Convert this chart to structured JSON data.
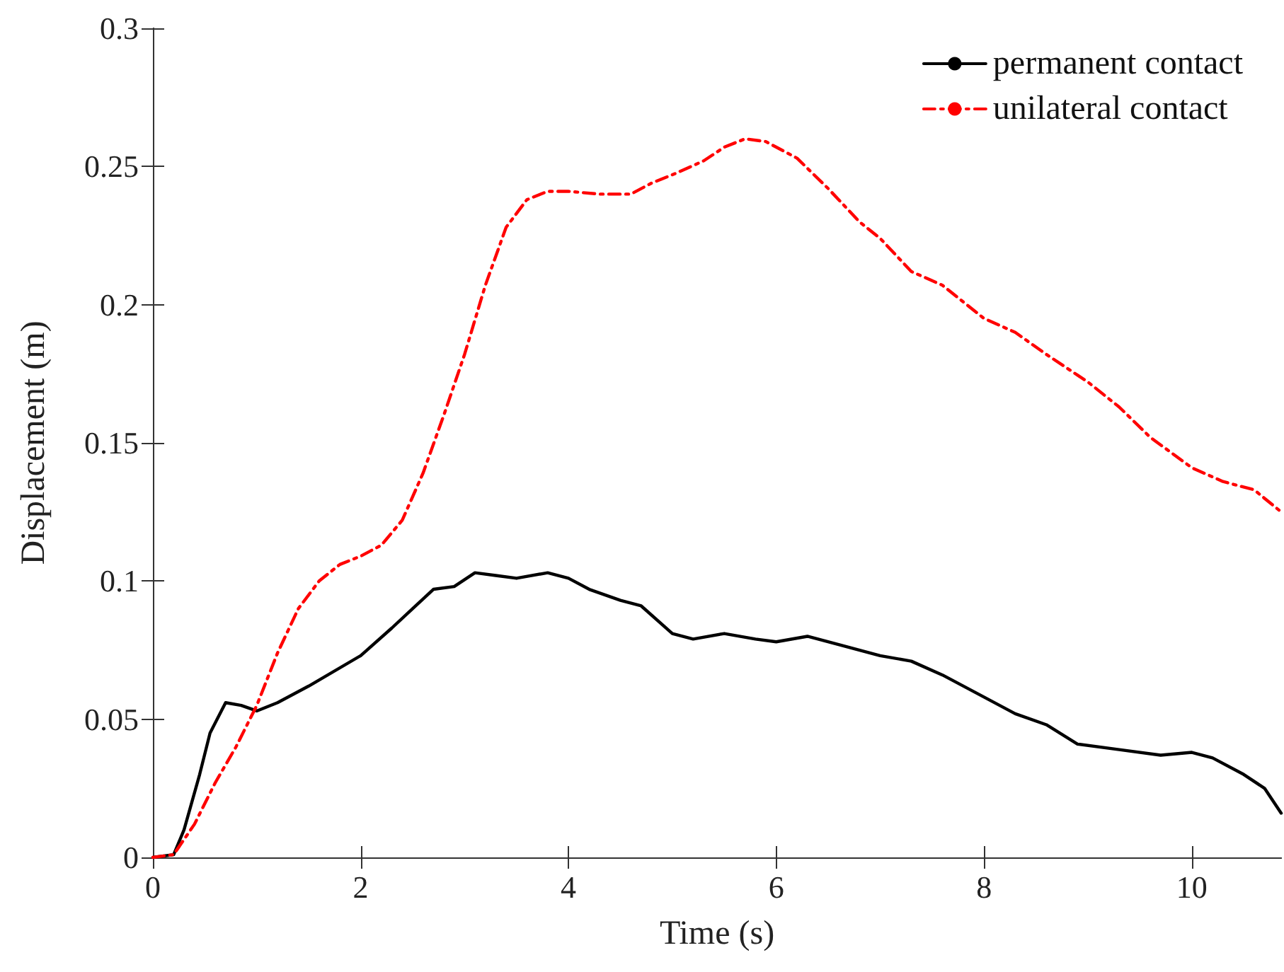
{
  "chart_data": {
    "type": "line",
    "xlabel": "Time (s)",
    "ylabel": "Displacement (m)",
    "xlim": [
      0,
      10.86
    ],
    "xticks": [
      0,
      2,
      4,
      6,
      8,
      10
    ],
    "ylim": [
      0,
      0.3
    ],
    "yticks": [
      0,
      0.05,
      0.1,
      0.15,
      0.2,
      0.25,
      0.3
    ],
    "grid": false,
    "legend": "top right",
    "marker": "none",
    "series": [
      {
        "name": "permanent contact",
        "color": "#000000",
        "line_style": "solid",
        "x": [
          0,
          0.2,
          0.3,
          0.45,
          0.55,
          0.7,
          0.85,
          1.0,
          1.2,
          1.5,
          2.0,
          2.3,
          2.5,
          2.7,
          2.9,
          3.1,
          3.3,
          3.5,
          3.8,
          4.0,
          4.2,
          4.5,
          4.7,
          5.0,
          5.2,
          5.5,
          5.8,
          6.0,
          6.3,
          6.6,
          7.0,
          7.3,
          7.6,
          8.0,
          8.3,
          8.6,
          8.9,
          9.3,
          9.7,
          10.0,
          10.2,
          10.5,
          10.7,
          10.86
        ],
        "values": [
          0,
          0.001,
          0.01,
          0.03,
          0.045,
          0.056,
          0.055,
          0.053,
          0.056,
          0.062,
          0.073,
          0.083,
          0.09,
          0.097,
          0.098,
          0.103,
          0.102,
          0.101,
          0.103,
          0.101,
          0.097,
          0.093,
          0.091,
          0.081,
          0.079,
          0.081,
          0.079,
          0.078,
          0.08,
          0.077,
          0.073,
          0.071,
          0.066,
          0.058,
          0.052,
          0.048,
          0.041,
          0.039,
          0.037,
          0.038,
          0.036,
          0.03,
          0.025,
          0.016
        ]
      },
      {
        "name": "unilateral contact",
        "color": "#ff0000",
        "line_style": "dashed",
        "x": [
          0,
          0.2,
          0.4,
          0.6,
          0.8,
          1.0,
          1.2,
          1.4,
          1.6,
          1.8,
          2.0,
          2.2,
          2.4,
          2.6,
          2.8,
          3.0,
          3.2,
          3.4,
          3.6,
          3.8,
          4.0,
          4.3,
          4.6,
          4.8,
          5.0,
          5.3,
          5.5,
          5.7,
          5.9,
          6.2,
          6.5,
          6.8,
          7.0,
          7.3,
          7.6,
          8.0,
          8.3,
          8.6,
          9.0,
          9.3,
          9.6,
          10.0,
          10.3,
          10.6,
          10.86
        ],
        "values": [
          0,
          0.001,
          0.012,
          0.027,
          0.04,
          0.055,
          0.074,
          0.09,
          0.1,
          0.106,
          0.109,
          0.113,
          0.122,
          0.139,
          0.16,
          0.182,
          0.207,
          0.228,
          0.238,
          0.241,
          0.241,
          0.24,
          0.24,
          0.244,
          0.247,
          0.252,
          0.257,
          0.26,
          0.259,
          0.253,
          0.242,
          0.23,
          0.224,
          0.212,
          0.207,
          0.195,
          0.19,
          0.182,
          0.172,
          0.163,
          0.152,
          0.141,
          0.136,
          0.133,
          0.125
        ]
      }
    ]
  }
}
